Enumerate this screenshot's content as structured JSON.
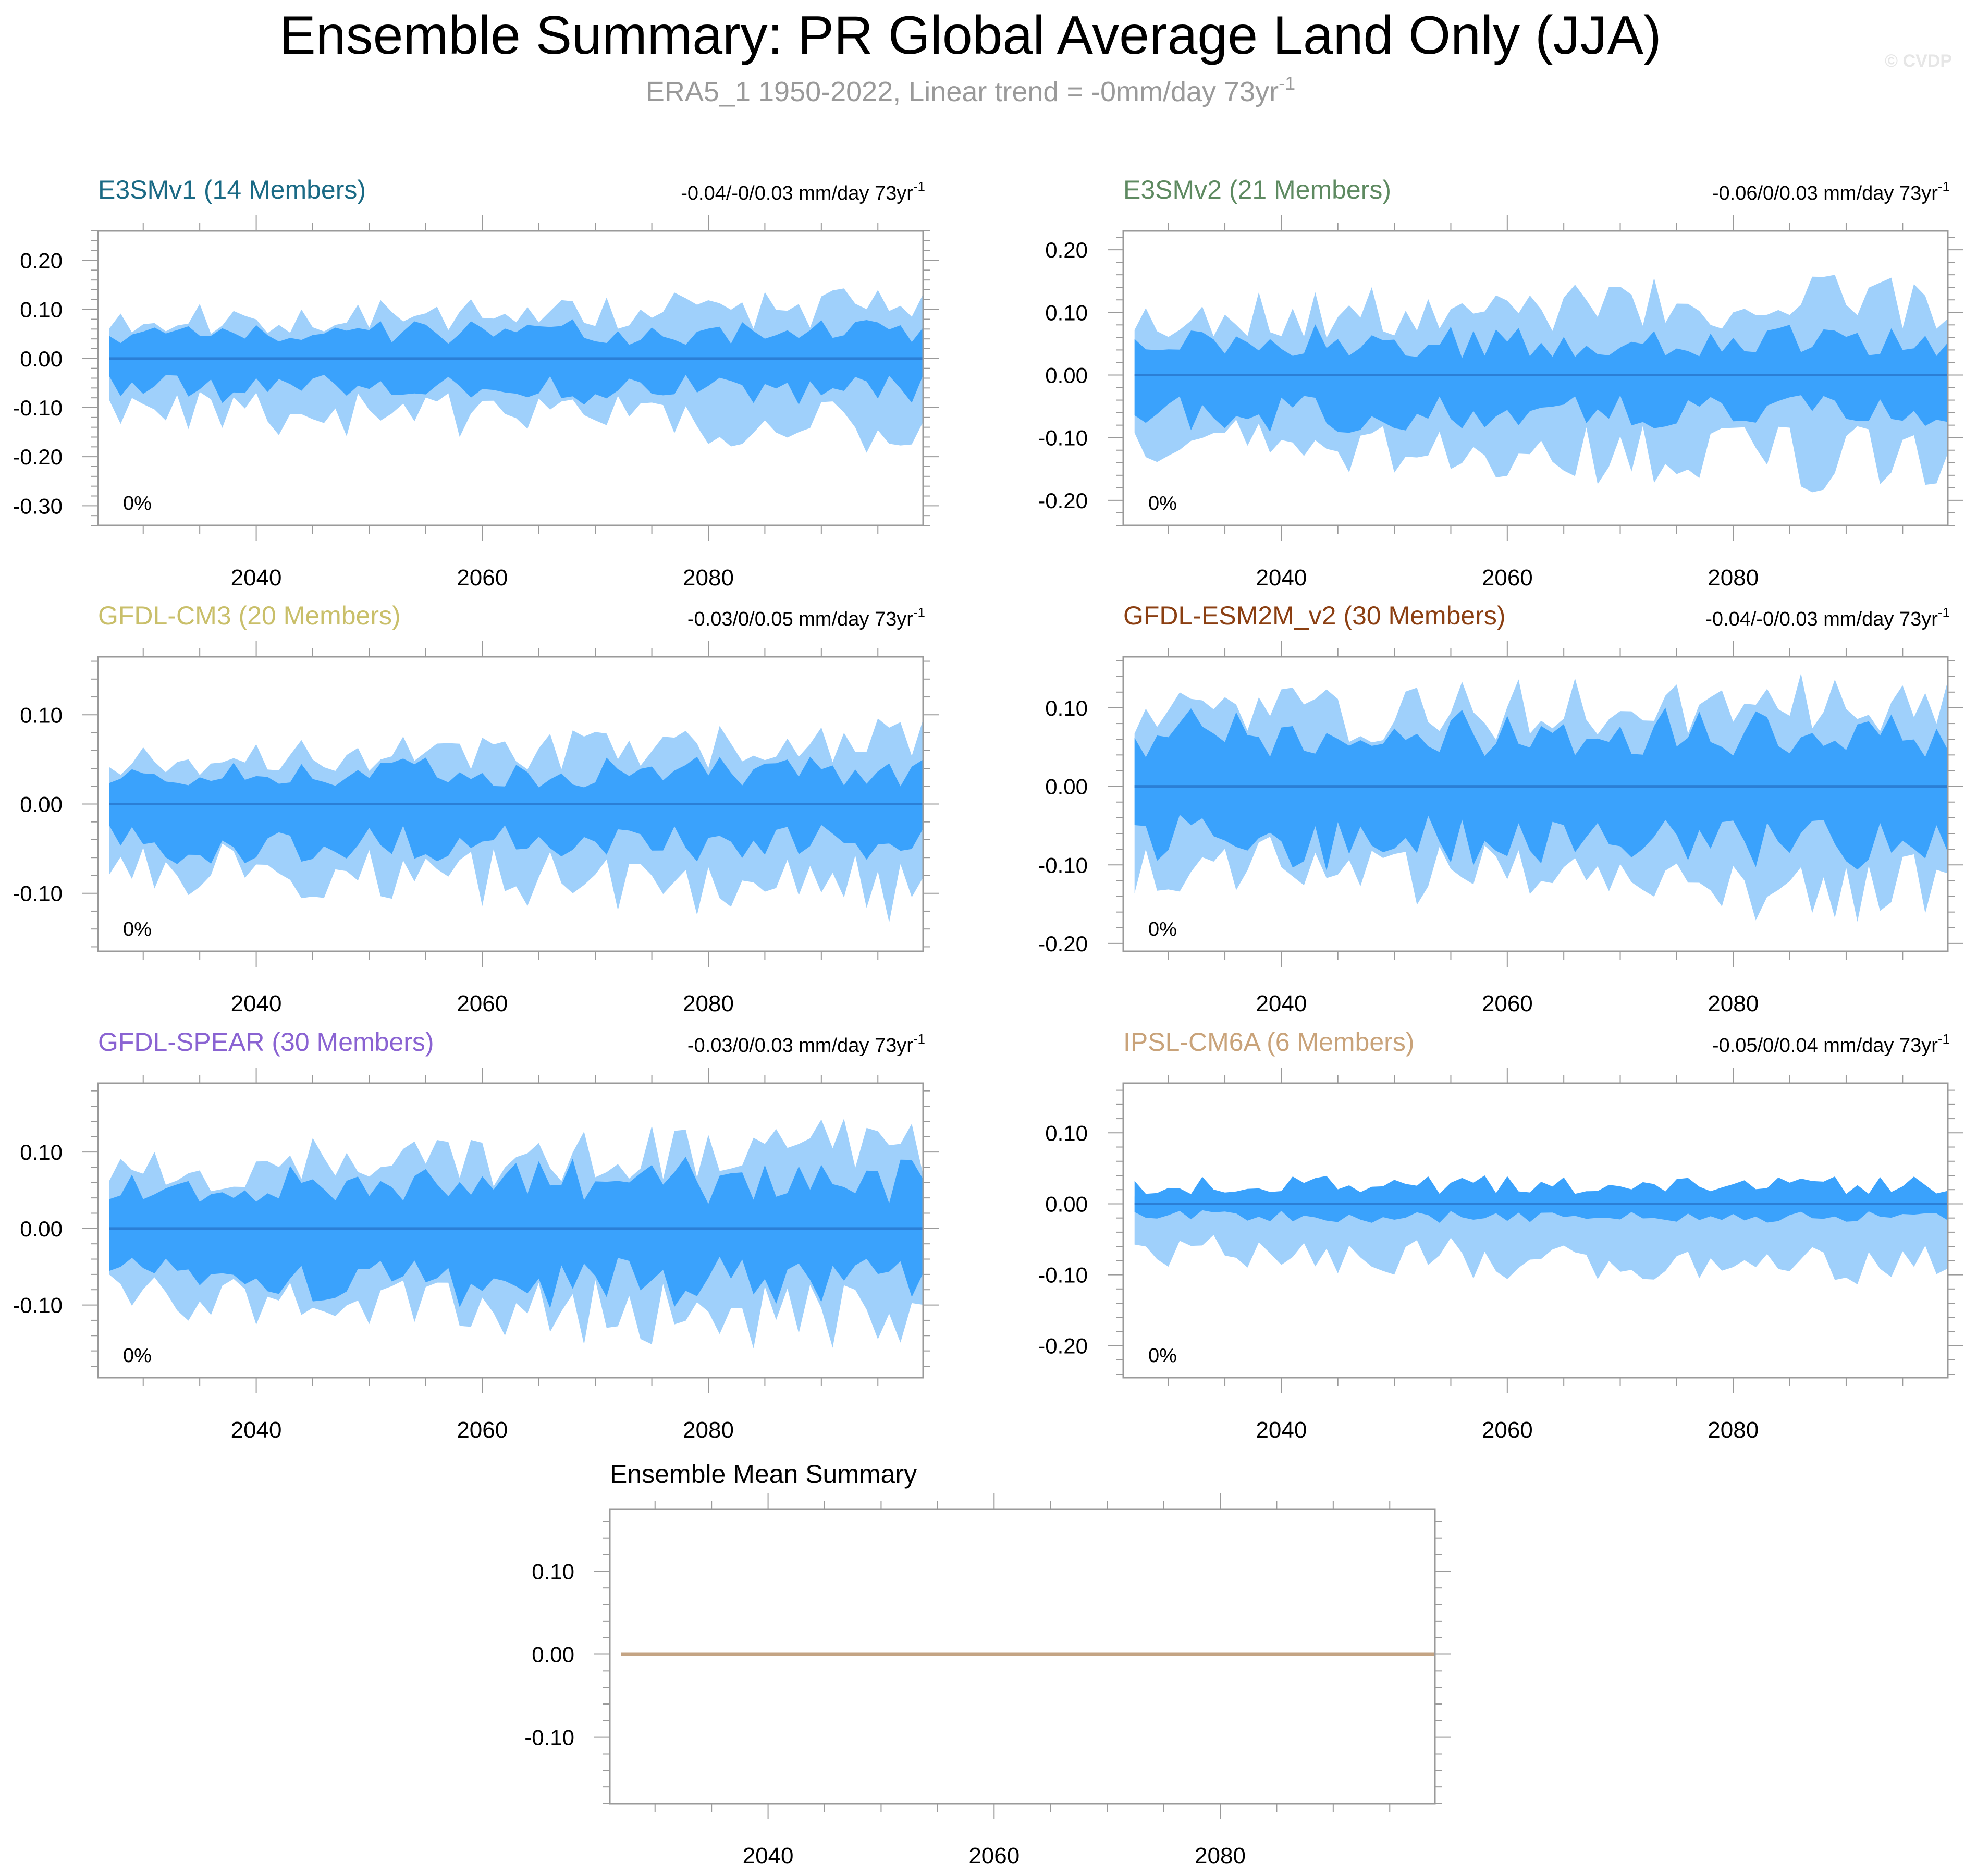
{
  "title": "Ensemble Summary: PR Global Average Land Only (JJA)",
  "subtitle": "ERA5_1 1950-2022, Linear trend = -0mm/day 73yr",
  "subtitle_sup": "-1",
  "watermark": "© CVDP",
  "colors": {
    "outer_band": "#9fd0fb",
    "inner_band": "#3aa2fc",
    "median_line": "#2b7fd6",
    "mean_line": "#c4a484"
  },
  "chart_data": [
    {
      "type": "area",
      "title": "E3SMv1 (14 Members)",
      "title_color": "#1a6a85",
      "trend_text": "-0.04/-0/0.03 mm/day 73yr",
      "trend_sup": "-1",
      "percent_label": "0%",
      "xlim": [
        2026,
        2099
      ],
      "ylim": [
        -0.34,
        0.26
      ],
      "x_ticks": [
        2040,
        2060,
        2080
      ],
      "y_ticks": [
        0.2,
        0.1,
        0.0,
        -0.1,
        -0.2,
        -0.3
      ],
      "y_tick_labels": [
        "0.20",
        "0.10",
        "0.00",
        "-0.10",
        "-0.20",
        "-0.30"
      ],
      "amp": {
        "o_up": 0.12,
        "o_dn": 0.16,
        "i_up": 0.06,
        "i_dn": 0.07
      },
      "seed": 11,
      "x": [
        2027,
        2099
      ],
      "median": 0.0
    },
    {
      "type": "area",
      "title": "E3SMv2 (21 Members)",
      "title_color": "#5e8a61",
      "trend_text": "-0.06/0/0.03 mm/day 73yr",
      "trend_sup": "-1",
      "percent_label": "0%",
      "xlim": [
        2026,
        2099
      ],
      "ylim": [
        -0.24,
        0.23
      ],
      "x_ticks": [
        2040,
        2060,
        2080
      ],
      "y_ticks": [
        0.2,
        0.1,
        0.0,
        -0.1,
        -0.2
      ],
      "y_tick_labels": [
        "0.20",
        "0.10",
        "0.00",
        "-0.10",
        "-0.20"
      ],
      "amp": {
        "o_up": 0.14,
        "o_dn": 0.16,
        "i_up": 0.06,
        "i_dn": 0.07
      },
      "seed": 23,
      "x": [
        2027,
        2099
      ],
      "median": 0.0
    },
    {
      "type": "area",
      "title": "GFDL-CM3 (20 Members)",
      "title_color": "#c9bf6a",
      "trend_text": "-0.03/0/0.05 mm/day 73yr",
      "trend_sup": "-1",
      "percent_label": "0%",
      "xlim": [
        2026,
        2099
      ],
      "ylim": [
        -0.165,
        0.165
      ],
      "x_ticks": [
        2040,
        2060,
        2080
      ],
      "y_ticks": [
        0.1,
        0.0,
        -0.1
      ],
      "y_tick_labels": [
        "0.10",
        "0.00",
        "-0.10"
      ],
      "amp": {
        "o_up": 0.08,
        "o_dn": 0.11,
        "i_up": 0.04,
        "i_dn": 0.05
      },
      "seed": 37,
      "x": [
        2027,
        2099
      ],
      "median": 0.0
    },
    {
      "type": "area",
      "title": "GFDL-ESM2M_v2 (30 Members)",
      "title_color": "#8b3f12",
      "trend_text": "-0.04/-0/0.03 mm/day 73yr",
      "trend_sup": "-1",
      "percent_label": "0%",
      "xlim": [
        2026,
        2099
      ],
      "ylim": [
        -0.21,
        0.165
      ],
      "x_ticks": [
        2040,
        2060,
        2080
      ],
      "y_ticks": [
        0.1,
        0.0,
        -0.1,
        -0.2
      ],
      "y_tick_labels": [
        "0.10",
        "0.00",
        "-0.10",
        "-0.20"
      ],
      "amp": {
        "o_up": 0.13,
        "o_dn": 0.15,
        "i_up": 0.08,
        "i_dn": 0.08
      },
      "seed": 41,
      "x": [
        2027,
        2099
      ],
      "median": 0.0
    },
    {
      "type": "area",
      "title": "GFDL-SPEAR (30 Members)",
      "title_color": "#8a63d2",
      "trend_text": "-0.03/0/0.03 mm/day 73yr",
      "trend_sup": "-1",
      "percent_label": "0%",
      "xlim": [
        2026,
        2099
      ],
      "ylim": [
        -0.195,
        0.19
      ],
      "x_ticks": [
        2040,
        2060,
        2080
      ],
      "y_ticks": [
        0.1,
        0.0,
        -0.1
      ],
      "y_tick_labels": [
        "0.10",
        "0.00",
        "-0.10"
      ],
      "amp": {
        "o_up": 0.12,
        "o_dn": 0.14,
        "i_up": 0.07,
        "i_dn": 0.08
      },
      "seed": 53,
      "x": [
        2027,
        2099
      ],
      "median": 0.0
    },
    {
      "type": "area",
      "title": "IPSL-CM6A (6 Members)",
      "title_color": "#c9a37a",
      "trend_text": "-0.05/0/0.04 mm/day 73yr",
      "trend_sup": "-1",
      "percent_label": "0%",
      "xlim": [
        2026,
        2099
      ],
      "ylim": [
        -0.245,
        0.17
      ],
      "x_ticks": [
        2040,
        2060,
        2080
      ],
      "y_ticks": [
        0.1,
        0.0,
        -0.1,
        -0.2
      ],
      "y_tick_labels": [
        "0.10",
        "0.00",
        "-0.10",
        "-0.20"
      ],
      "amp": {
        "o_up": 0.02,
        "o_dn": 0.08,
        "i_up": 0.03,
        "i_dn": 0.02
      },
      "seed": 67,
      "x": [
        2027,
        2099
      ],
      "median": 0.0
    },
    {
      "type": "line",
      "title": "Ensemble Mean Summary",
      "title_color": "#000000",
      "xlim": [
        2026,
        2099
      ],
      "ylim": [
        -0.18,
        0.175
      ],
      "x_ticks": [
        2040,
        2060,
        2080
      ],
      "y_ticks": [
        0.1,
        0.0,
        -0.1
      ],
      "y_tick_labels": [
        "0.10",
        "0.00",
        "-0.10"
      ],
      "series": [
        {
          "x": [
            2027,
            2099
          ],
          "values": [
            0.0,
            0.0
          ]
        }
      ]
    }
  ]
}
